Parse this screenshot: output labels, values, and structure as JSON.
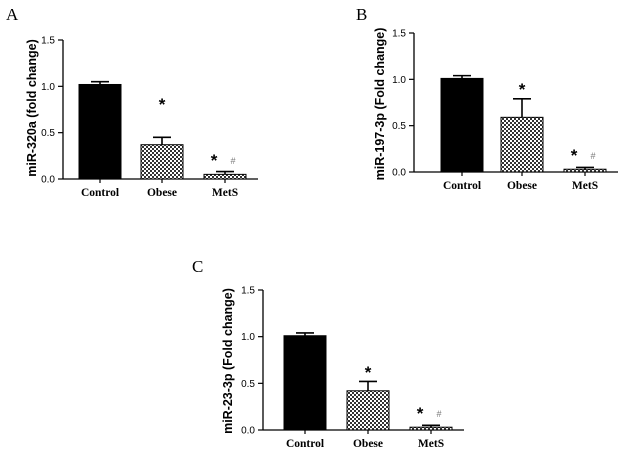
{
  "chart_data": [
    {
      "panel": "A",
      "type": "bar",
      "ylabel": "miR-320a (fold change)",
      "ylim": [
        0,
        1.5
      ],
      "yticks": [
        "0.0",
        "0.5",
        "1.0",
        "1.5"
      ],
      "categories": [
        "Control",
        "Obese",
        "MetS"
      ],
      "values": [
        1.02,
        0.37,
        0.05
      ],
      "errors": [
        0.03,
        0.08,
        0.03
      ],
      "fills": [
        "solid",
        "checker",
        "checker"
      ],
      "annotations": [
        {
          "category": "Obese",
          "star": "*",
          "hash": ""
        },
        {
          "category": "MetS",
          "star": "*",
          "hash": "#"
        }
      ]
    },
    {
      "panel": "B",
      "type": "bar",
      "ylabel": "miR-197-3p (Fold change)",
      "ylim": [
        0,
        1.5
      ],
      "yticks": [
        "0.0",
        "0.5",
        "1.0",
        "1.5"
      ],
      "categories": [
        "Control",
        "Obese",
        "MetS"
      ],
      "values": [
        1.01,
        0.59,
        0.03
      ],
      "errors": [
        0.03,
        0.2,
        0.02
      ],
      "fills": [
        "solid",
        "checker",
        "checker"
      ],
      "annotations": [
        {
          "category": "Obese",
          "star": "*",
          "hash": ""
        },
        {
          "category": "MetS",
          "star": "*",
          "hash": "#"
        }
      ]
    },
    {
      "panel": "C",
      "type": "bar",
      "ylabel": "miR-23-3p (Fold change)",
      "ylim": [
        0,
        1.5
      ],
      "yticks": [
        "0.0",
        "0.5",
        "1.0",
        "1.5"
      ],
      "categories": [
        "Control",
        "Obese",
        "MetS"
      ],
      "values": [
        1.01,
        0.42,
        0.03
      ],
      "errors": [
        0.03,
        0.1,
        0.02
      ],
      "fills": [
        "solid",
        "checker",
        "checker"
      ],
      "annotations": [
        {
          "category": "Obese",
          "star": "*",
          "hash": ""
        },
        {
          "category": "MetS",
          "star": "*",
          "hash": "#"
        }
      ]
    }
  ]
}
